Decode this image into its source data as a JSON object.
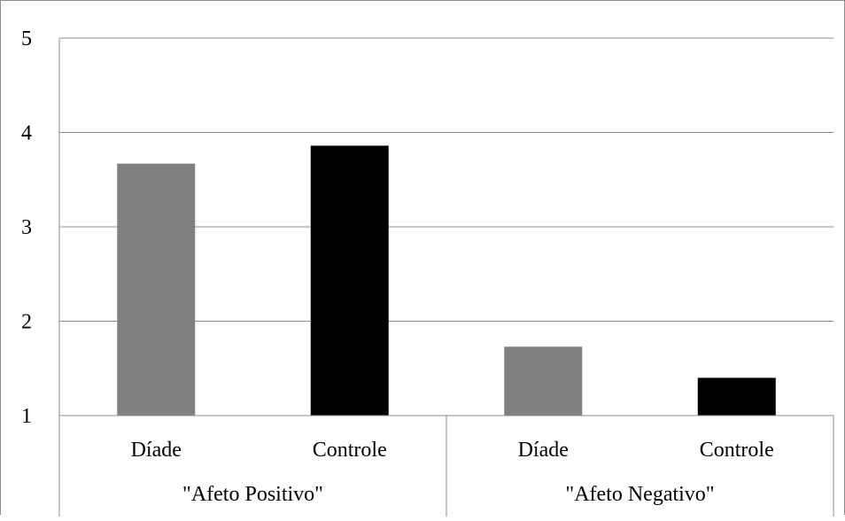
{
  "chart_data": {
    "type": "bar",
    "groups": [
      "\"Afeto Positivo\"",
      "\"Afeto Negativo\""
    ],
    "categories": [
      "Díade",
      "Controle",
      "Díade",
      "Controle"
    ],
    "values": [
      3.67,
      3.86,
      1.73,
      1.4
    ],
    "bar_colors": [
      "#808080",
      "#000000",
      "#808080",
      "#000000"
    ],
    "y_ticks": [
      "1",
      "2",
      "3",
      "4",
      "5"
    ],
    "ylim": [
      1,
      5
    ],
    "grid": true,
    "title": "",
    "xlabel": "",
    "ylabel": ""
  }
}
